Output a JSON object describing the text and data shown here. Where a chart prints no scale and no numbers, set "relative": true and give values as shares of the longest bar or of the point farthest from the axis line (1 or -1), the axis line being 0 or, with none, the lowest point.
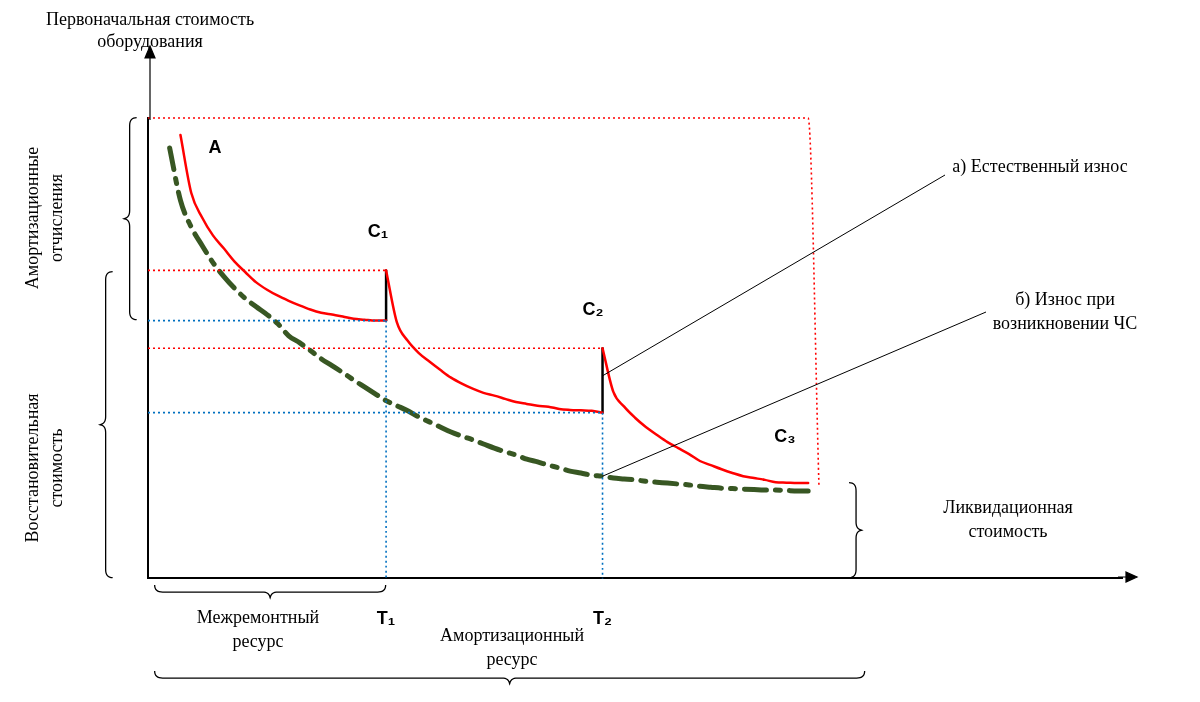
{
  "chart_data": {
    "type": "line",
    "relative": true,
    "ylabel": "Первоначальная стоимость\nоборудования",
    "marker": "none",
    "categories": [
      null,
      null,
      null,
      null,
      null,
      null,
      null,
      null,
      null,
      null,
      null,
      null,
      null,
      null,
      null,
      null,
      null,
      null,
      null,
      null,
      null,
      null,
      "T₁",
      null,
      null,
      null,
      null,
      null,
      null,
      null,
      null,
      null,
      null,
      null,
      null,
      null,
      null,
      null,
      null,
      null,
      null,
      null,
      "T₂",
      null,
      null,
      null,
      null,
      null,
      null,
      null,
      null,
      null,
      null,
      null,
      null,
      null,
      null,
      null,
      null,
      null,
      null,
      null,
      null,
      null,
      null,
      null,
      null,
      null,
      null,
      null,
      null,
      null,
      null,
      null,
      null,
      null,
      null,
      null,
      null,
      null,
      null,
      null,
      null,
      null,
      null,
      null,
      null,
      null,
      null,
      null,
      null
    ],
    "series": [
      {
        "color": "#ff0000",
        "line_style": "dotted",
        "values": [
          1,
          1,
          1,
          1,
          1,
          1,
          1,
          1,
          1,
          1,
          1,
          1,
          1,
          1,
          1,
          1,
          1,
          1,
          1,
          1,
          1,
          1,
          1,
          1,
          1,
          1,
          1,
          1,
          1,
          1,
          1,
          1,
          1,
          1,
          1,
          1,
          1,
          1,
          1,
          1,
          1,
          1,
          1,
          1,
          1,
          1,
          1,
          1,
          1,
          1,
          1,
          1,
          1,
          1,
          1,
          1,
          1,
          1,
          1,
          1,
          1,
          1,
          0.2,
          null,
          null,
          null,
          null,
          null,
          null,
          null,
          null,
          null,
          null,
          null,
          null,
          null,
          null,
          null,
          null,
          null,
          null,
          null,
          null,
          null,
          null,
          null,
          null,
          null,
          null,
          null,
          null
        ]
      },
      {
        "color": "#ff0000",
        "line_style": "dotted",
        "values": [
          0.669,
          0.669,
          0.669,
          0.669,
          0.669,
          0.669,
          0.669,
          0.669,
          0.669,
          0.669,
          0.669,
          0.669,
          0.669,
          0.669,
          0.669,
          0.669,
          0.669,
          0.669,
          0.669,
          0.669,
          0.669,
          0.669,
          0.669,
          null,
          null,
          null,
          null,
          null,
          null,
          null,
          null,
          null,
          null,
          null,
          null,
          null,
          null,
          null,
          null,
          null,
          null,
          null,
          null,
          null,
          null,
          null,
          null,
          null,
          null,
          null,
          null,
          null,
          null,
          null,
          null,
          null,
          null,
          null,
          null,
          null,
          null,
          null,
          null,
          null,
          null,
          null,
          null,
          null,
          null,
          null,
          null,
          null,
          null,
          null,
          null,
          null,
          null,
          null,
          null,
          null,
          null,
          null,
          null,
          null,
          null,
          null,
          null,
          null,
          null,
          null,
          null
        ]
      },
      {
        "color": "#0070c0",
        "line_style": "dotted",
        "values": [
          0.56,
          0.56,
          0.56,
          0.56,
          0.56,
          0.56,
          0.56,
          0.56,
          0.56,
          0.56,
          0.56,
          0.56,
          0.56,
          0.56,
          0.56,
          0.56,
          0.56,
          0.56,
          0.56,
          0.56,
          0.56,
          0.56,
          0.56,
          null,
          null,
          null,
          null,
          null,
          null,
          null,
          null,
          null,
          null,
          null,
          null,
          null,
          null,
          null,
          null,
          null,
          null,
          null,
          null,
          null,
          null,
          null,
          null,
          null,
          null,
          null,
          null,
          null,
          null,
          null,
          null,
          null,
          null,
          null,
          null,
          null,
          null,
          null,
          null,
          null,
          null,
          null,
          null,
          null,
          null,
          null,
          null,
          null,
          null,
          null,
          null,
          null,
          null,
          null,
          null,
          null,
          null,
          null,
          null,
          null,
          null,
          null,
          null,
          null,
          null,
          null,
          null
        ]
      },
      {
        "color": "#0070c0",
        "line_style": "dotted",
        "x": [
          "T₁",
          "T₁"
        ],
        "values": [
          0.56,
          0
        ]
      },
      {
        "color": "#ff0000",
        "line_style": "dotted",
        "values": [
          0.5,
          0.5,
          0.5,
          0.5,
          0.5,
          0.5,
          0.5,
          0.5,
          0.5,
          0.5,
          0.5,
          0.5,
          0.5,
          0.5,
          0.5,
          0.5,
          0.5,
          0.5,
          0.5,
          0.5,
          0.5,
          0.5,
          0.5,
          0.5,
          0.5,
          0.5,
          0.5,
          0.5,
          0.5,
          0.5,
          0.5,
          0.5,
          0.5,
          0.5,
          0.5,
          0.5,
          0.5,
          0.5,
          0.5,
          0.5,
          0.5,
          0.5,
          0.5,
          null,
          null,
          null,
          null,
          null,
          null,
          null,
          null,
          null,
          null,
          null,
          null,
          null,
          null,
          null,
          null,
          null,
          null,
          null,
          null,
          null,
          null,
          null,
          null,
          null,
          null,
          null,
          null,
          null,
          null,
          null,
          null,
          null,
          null,
          null,
          null,
          null,
          null,
          null,
          null,
          null,
          null,
          null,
          null,
          null,
          null,
          null,
          null
        ]
      },
      {
        "color": "#0070c0",
        "line_style": "dotted",
        "values": [
          0.36,
          0.36,
          0.36,
          0.36,
          0.36,
          0.36,
          0.36,
          0.36,
          0.36,
          0.36,
          0.36,
          0.36,
          0.36,
          0.36,
          0.36,
          0.36,
          0.36,
          0.36,
          0.36,
          0.36,
          0.36,
          0.36,
          0.36,
          0.36,
          0.36,
          0.36,
          0.36,
          0.36,
          0.36,
          0.36,
          0.36,
          0.36,
          0.36,
          0.36,
          0.36,
          0.36,
          0.36,
          0.36,
          0.36,
          0.36,
          0.36,
          0.36,
          0.36,
          null,
          null,
          null,
          null,
          null,
          null,
          null,
          null,
          null,
          null,
          null,
          null,
          null,
          null,
          null,
          null,
          null,
          null,
          null,
          null,
          null,
          null,
          null,
          null,
          null,
          null,
          null,
          null,
          null,
          null,
          null,
          null,
          null,
          null,
          null,
          null,
          null,
          null,
          null,
          null,
          null,
          null,
          null,
          null,
          null,
          null,
          null,
          null
        ]
      },
      {
        "color": "#0070c0",
        "line_style": "dotted",
        "x": [
          "T₂",
          "T₂"
        ],
        "values": [
          0.36,
          0
        ]
      },
      {
        "color": "#ff0000",
        "line_style": "solid",
        "values": [
          null,
          null,
          null,
          0.963,
          0.837,
          0.784,
          0.745,
          0.717,
          0.688,
          0.665,
          0.643,
          0.627,
          0.614,
          0.603,
          0.593,
          0.584,
          0.577,
          0.573,
          0.569,
          0.564,
          0.562,
          0.56,
          0.56,
          null,
          null,
          null,
          null,
          null,
          null,
          null,
          null,
          null,
          null,
          null,
          null,
          null,
          null,
          null,
          null,
          null,
          null,
          null,
          null,
          null,
          null,
          null,
          null,
          null,
          null,
          null,
          null,
          null,
          null,
          null,
          null,
          null,
          null,
          null,
          null,
          null,
          null,
          null,
          null,
          null,
          null,
          null,
          null,
          null,
          null,
          null,
          null,
          null,
          null,
          null,
          null,
          null,
          null,
          null,
          null,
          null,
          null,
          null,
          null,
          null,
          null,
          null,
          null,
          null,
          null,
          null,
          null
        ]
      },
      {
        "color": "#ff0000",
        "line_style": "solid",
        "values": [
          null,
          null,
          null,
          null,
          null,
          null,
          null,
          null,
          null,
          null,
          null,
          null,
          null,
          null,
          null,
          null,
          null,
          null,
          null,
          null,
          null,
          null,
          0.669,
          0.556,
          0.516,
          0.49,
          0.471,
          0.453,
          0.436,
          0.423,
          0.412,
          0.403,
          0.397,
          0.39,
          0.383,
          0.379,
          0.375,
          0.373,
          0.368,
          0.366,
          0.365,
          0.364,
          0.36,
          null,
          null,
          null,
          null,
          null,
          null,
          null,
          null,
          null,
          null,
          null,
          null,
          null,
          null,
          null,
          null,
          null,
          null,
          null,
          null,
          null,
          null,
          null,
          null,
          null,
          null,
          null,
          null,
          null,
          null,
          null,
          null,
          null,
          null,
          null,
          null,
          null,
          null,
          null,
          null,
          null,
          null,
          null,
          null,
          null,
          null,
          null,
          null
        ]
      },
      {
        "color": "#ff0000",
        "line_style": "solid",
        "values": [
          null,
          null,
          null,
          null,
          null,
          null,
          null,
          null,
          null,
          null,
          null,
          null,
          null,
          null,
          null,
          null,
          null,
          null,
          null,
          null,
          null,
          null,
          null,
          null,
          null,
          null,
          null,
          null,
          null,
          null,
          null,
          null,
          null,
          null,
          null,
          null,
          null,
          null,
          null,
          null,
          null,
          null,
          0.5,
          0.405,
          0.373,
          0.349,
          0.329,
          0.312,
          0.296,
          0.283,
          0.27,
          0.255,
          0.246,
          0.237,
          0.229,
          0.222,
          0.218,
          0.214,
          0.209,
          0.208,
          0.207,
          0.207,
          null,
          null,
          null,
          null,
          null,
          null,
          null,
          null,
          null,
          null,
          null,
          null,
          null,
          null,
          null,
          null,
          null,
          null,
          null,
          null,
          null,
          null,
          null,
          null,
          null,
          null,
          null,
          null,
          null
        ]
      },
      {
        "color": "#000000",
        "line_style": "solid",
        "x": [
          "T₁",
          "T₁"
        ],
        "values": [
          0.56,
          0.669
        ]
      },
      {
        "color": "#000000",
        "line_style": "solid",
        "x": [
          "T₂",
          "T₂"
        ],
        "values": [
          0.36,
          0.5
        ]
      },
      {
        "color": "#385723",
        "line_style": "dashed",
        "values": [
          null,
          null,
          0.935,
          0.821,
          0.763,
          0.723,
          0.686,
          0.656,
          0.63,
          0.608,
          0.59,
          0.573,
          0.553,
          0.527,
          0.512,
          0.495,
          0.477,
          0.462,
          0.447,
          0.431,
          0.416,
          0.401,
          0.386,
          0.375,
          0.364,
          0.351,
          0.34,
          0.329,
          0.318,
          0.309,
          0.301,
          0.292,
          0.283,
          0.275,
          0.268,
          0.259,
          0.253,
          0.246,
          0.24,
          0.233,
          0.229,
          0.224,
          0.222,
          0.218,
          0.216,
          0.214,
          0.211,
          0.209,
          0.207,
          0.205,
          0.203,
          0.2,
          0.198,
          0.196,
          0.195,
          0.194,
          0.193,
          0.192,
          0.192,
          0.191,
          0.19,
          0.19,
          null,
          null,
          null,
          null,
          null,
          null,
          null,
          null,
          null,
          null,
          null,
          null,
          null,
          null,
          null,
          null,
          null,
          null,
          null,
          null,
          null,
          null,
          null,
          null,
          null,
          null,
          null,
          null,
          null
        ]
      }
    ],
    "annotations": [
      "Амортизационные\nотчисления",
      "Восстановительная\nстоимость",
      "Ликвидационная\nстоимость",
      "Межремонтный\nресурс",
      "Амортизационный\nресурс",
      "A",
      "C₁",
      "C₂",
      "C₃",
      {
        "text": "а) Естественный износ",
        "x": "T₂",
        "y": 0.44
      },
      {
        "text": "б) Износ при\nвозникновении ЧС",
        "x": "T₂",
        "y": 0.222
      }
    ]
  }
}
